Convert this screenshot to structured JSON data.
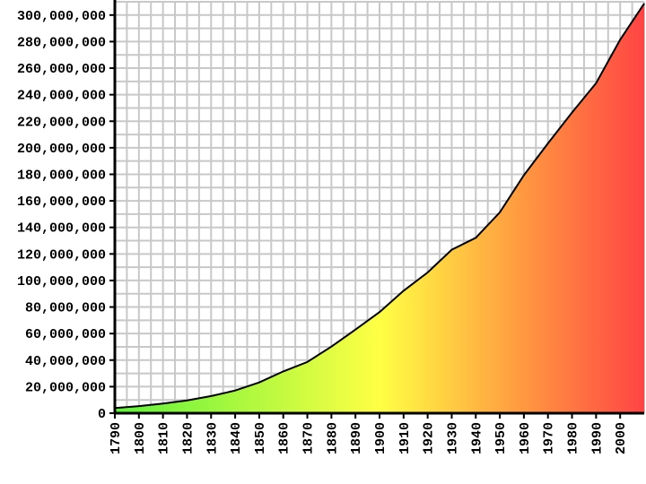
{
  "chart_data": {
    "type": "area",
    "title": "",
    "xlabel": "",
    "ylabel": "",
    "xlim": [
      1790,
      2010
    ],
    "ylim": [
      0,
      310000000
    ],
    "grid": true,
    "x_ticks": [
      "1790",
      "1800",
      "1810",
      "1820",
      "1830",
      "1840",
      "1850",
      "1860",
      "1870",
      "1880",
      "1890",
      "1900",
      "1910",
      "1920",
      "1930",
      "1940",
      "1950",
      "1960",
      "1970",
      "1980",
      "1990",
      "2000"
    ],
    "y_ticks": [
      "0",
      "20,000,000",
      "40,000,000",
      "60,000,000",
      "80,000,000",
      "100,000,000",
      "120,000,000",
      "140,000,000",
      "160,000,000",
      "180,000,000",
      "200,000,000",
      "220,000,000",
      "240,000,000",
      "260,000,000",
      "280,000,000",
      "300,000,000"
    ],
    "gradient_colors": [
      "#5ef23a",
      "#ffff44",
      "#ffa040",
      "#ff4444"
    ],
    "series": [
      {
        "x": [
          1790,
          1800,
          1810,
          1820,
          1830,
          1840,
          1850,
          1860,
          1870,
          1880,
          1890,
          1900,
          1910,
          1920,
          1930,
          1940,
          1950,
          1960,
          1970,
          1980,
          1990,
          2000,
          2010
        ],
        "values": [
          3929214,
          5308483,
          7239881,
          9638453,
          12866020,
          17069453,
          23191876,
          31443321,
          38558371,
          50189209,
          62979766,
          76212168,
          92228496,
          106021537,
          123202624,
          132164569,
          151325798,
          179323175,
          203302031,
          226542199,
          248709873,
          281421906,
          308745538
        ]
      }
    ]
  }
}
